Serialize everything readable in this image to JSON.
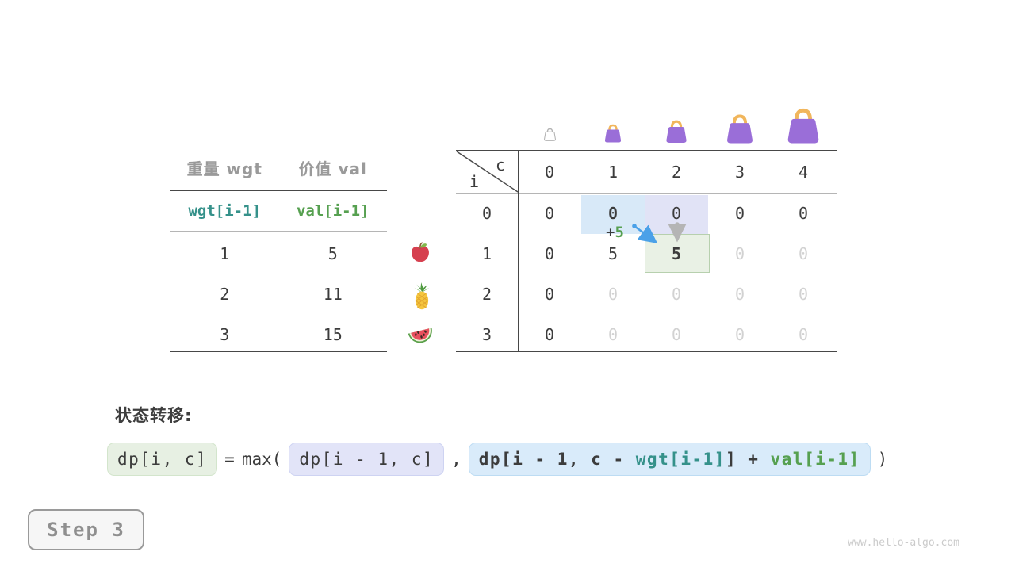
{
  "items_table": {
    "col_headers": [
      "重量 wgt",
      "价值 val"
    ],
    "sub_headers": {
      "wgt": "wgt[i-1]",
      "val": "val[i-1]"
    },
    "rows": [
      [
        "1",
        "5"
      ],
      [
        "2",
        "11"
      ],
      [
        "3",
        "15"
      ]
    ]
  },
  "fruit_icons": [
    "apple-icon",
    "pineapple-icon",
    "watermelon-icon"
  ],
  "bag_icons": [
    "bag-empty-icon",
    "bag-size-1-icon",
    "bag-size-2-icon",
    "bag-size-3-icon",
    "bag-size-4-icon"
  ],
  "dp_table": {
    "corner_col_var": "c",
    "corner_row_var": "i",
    "col_headers": [
      "0",
      "1",
      "2",
      "3",
      "4"
    ],
    "row_headers": [
      "0",
      "1",
      "2",
      "3"
    ],
    "cells": [
      [
        "0",
        "0",
        "0",
        "0",
        "0"
      ],
      [
        "0",
        "5",
        "5",
        "0",
        "0"
      ],
      [
        "0",
        "0",
        "0",
        "0",
        "0"
      ],
      [
        "0",
        "0",
        "0",
        "0",
        "0"
      ]
    ],
    "cell_styles": [
      [
        "dark",
        "bold",
        "dark",
        "dark",
        "dark"
      ],
      [
        "dark",
        "dark",
        "bold",
        "dim",
        "dim"
      ],
      [
        "dark",
        "dim",
        "dim",
        "dim",
        "dim"
      ],
      [
        "dark",
        "dim",
        "dim",
        "dim",
        "dim"
      ]
    ],
    "annotation": {
      "plus": "+",
      "value": "5"
    }
  },
  "transition": {
    "heading": "状态转移:",
    "lhs": "dp[i, c]",
    "equals": "=",
    "max_open": "max(",
    "arg1": "dp[i - 1, c]",
    "comma": ",",
    "arg2": {
      "p1": "dp[i - 1, c - ",
      "wgt": "wgt[i-1]",
      "p2": "] + ",
      "val": "val[i-1]"
    },
    "close_paren": ")"
  },
  "step_button": {
    "label": "Step 3"
  },
  "watermark": "www.hello-algo.com",
  "colors": {
    "dark_text": "#3c3c3c",
    "gray_header": "#9a9a9a",
    "teal": "#35918a",
    "green": "#56a050",
    "dim_zero": "#d2d2d2",
    "blue_highlight": "#d8e9f8",
    "lavender_highlight": "#e1e3f6",
    "green_highlight": "#e9f1e5",
    "blue_arrow": "#4ba1e8",
    "gray_arrow": "#b5b5b5",
    "bag_purple": "#9a6ed8",
    "bag_handle": "#f1b65c"
  }
}
